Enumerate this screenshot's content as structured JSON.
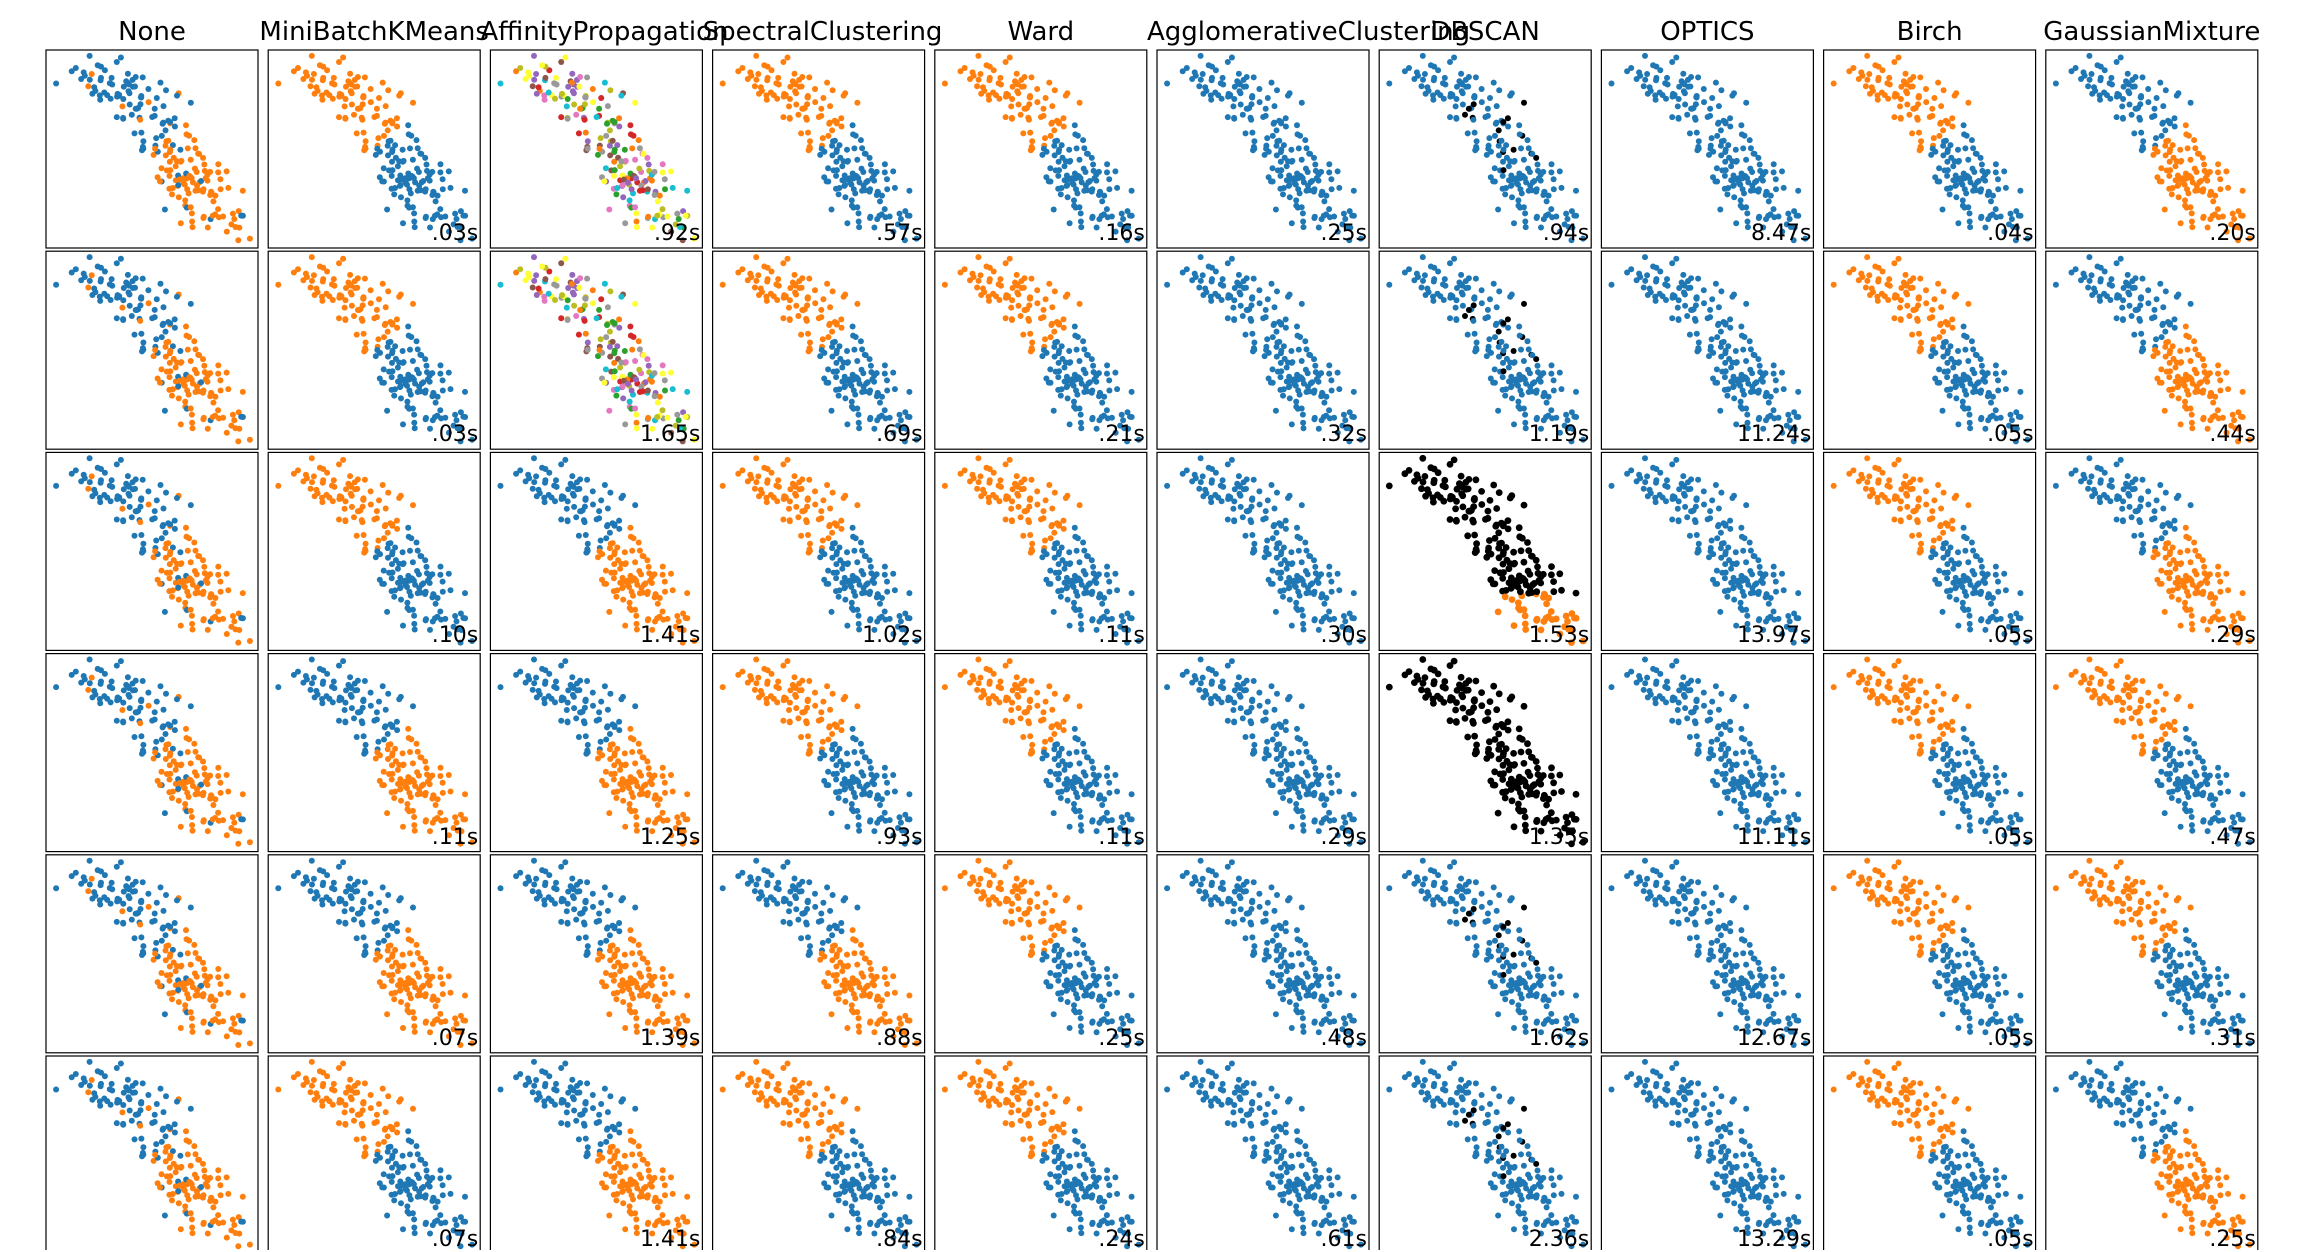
{
  "chart_data": {
    "type": "scatter",
    "columns": [
      "None",
      "MiniBatchKMeans",
      "AffinityPropagation",
      "SpectralClustering",
      "Ward",
      "AgglomerativeClustering",
      "DBSCAN",
      "OPTICS",
      "Birch",
      "GaussianMixture"
    ],
    "rows": 6,
    "grid": false,
    "ticks": false,
    "colors": {
      "blue": "#1f77b4",
      "orange": "#ff7f0e",
      "black": "#000000",
      "multi": [
        "#ff7f0e",
        "#2ca02c",
        "#d62728",
        "#9467bd",
        "#8c564b",
        "#e377c2",
        "#bcbd22",
        "#17becf",
        "#ffff33",
        "#999999"
      ]
    },
    "timings": [
      [
        "",
        ".03s",
        ".92s",
        ".57s",
        ".16s",
        ".25s",
        ".94s",
        "8.47s",
        ".04s",
        ".20s"
      ],
      [
        "",
        ".03s",
        "1.65s",
        ".69s",
        ".21s",
        ".32s",
        "1.19s",
        "11.24s",
        ".05s",
        ".44s"
      ],
      [
        "",
        ".10s",
        "1.41s",
        "1.02s",
        ".11s",
        ".30s",
        "1.53s",
        "13.97s",
        ".05s",
        ".29s"
      ],
      [
        "",
        ".11s",
        "1.25s",
        ".93s",
        ".11s",
        ".29s",
        "1.35s",
        "11.11s",
        ".05s",
        ".47s"
      ],
      [
        "",
        ".07s",
        "1.39s",
        ".88s",
        ".25s",
        ".48s",
        "1.62s",
        "12.67s",
        ".05s",
        ".31s"
      ],
      [
        "",
        ".07s",
        "1.41s",
        ".84s",
        ".24s",
        ".61s",
        "2.36s",
        "13.29s",
        ".05s",
        ".25s"
      ]
    ],
    "coloring": [
      [
        "ground_truth",
        "split_top_orange",
        "multi",
        "split_top_orange",
        "split_top_orange",
        "all_blue",
        "blue_with_black_noise",
        "all_blue",
        "split_top_orange",
        "split_bottom_orange"
      ],
      [
        "ground_truth",
        "split_top_orange",
        "multi",
        "split_top_orange",
        "split_top_orange",
        "all_blue",
        "blue_with_black_noise",
        "all_blue",
        "split_top_orange",
        "split_bottom_orange"
      ],
      [
        "ground_truth",
        "split_top_orange",
        "split_bottom_orange",
        "split_top_orange",
        "split_top_orange",
        "all_blue",
        "black_top_orange_bottom",
        "all_blue",
        "split_top_orange",
        "split_bottom_orange"
      ],
      [
        "ground_truth",
        "split_bottom_orange",
        "split_bottom_orange",
        "split_top_orange",
        "split_top_orange",
        "all_blue",
        "all_black",
        "all_blue",
        "split_top_orange",
        "split_top_orange"
      ],
      [
        "ground_truth",
        "split_bottom_orange",
        "split_bottom_orange",
        "split_bottom_orange",
        "split_top_orange",
        "all_blue",
        "blue_with_black_noise",
        "all_blue",
        "split_top_orange",
        "split_top_orange"
      ],
      [
        "ground_truth",
        "split_top_orange",
        "split_bottom_orange",
        "split_top_orange",
        "split_top_orange",
        "all_blue",
        "blue_with_black_noise",
        "all_blue",
        "split_top_orange",
        "split_bottom_orange"
      ]
    ],
    "points": {
      "count": 200,
      "upper_cluster_center": [
        0.3,
        0.7
      ],
      "lower_cluster_center": [
        0.7,
        0.3
      ]
    }
  }
}
